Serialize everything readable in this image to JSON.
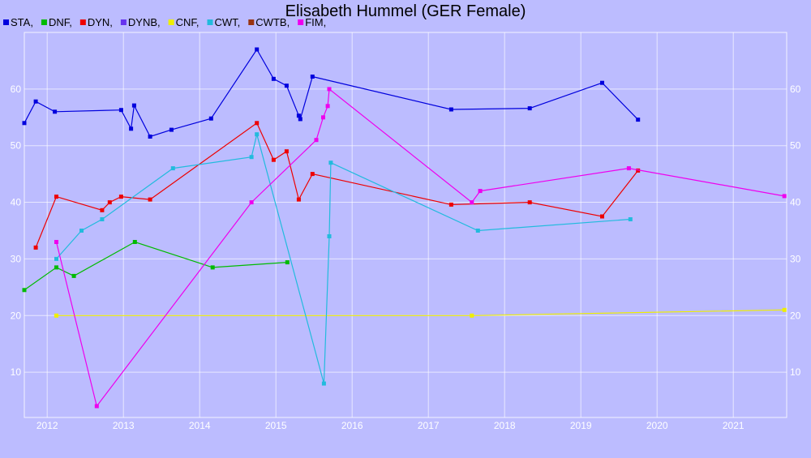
{
  "chart_data": {
    "type": "line",
    "title": "Elisabeth Hummel (GER Female)",
    "xlabel": "",
    "ylabel": "",
    "xlim": [
      2011.7,
      2021.7
    ],
    "ylim": [
      2,
      70
    ],
    "x_ticks": [
      "2012",
      "2013",
      "2014",
      "2015",
      "2016",
      "2017",
      "2018",
      "2019",
      "2020",
      "2021"
    ],
    "y_ticks_left": [
      "10",
      "20",
      "30",
      "40",
      "50",
      "60"
    ],
    "y_ticks_right": [
      "10",
      "20",
      "30",
      "40",
      "50",
      "60"
    ],
    "grid": true,
    "legend_position": "top-left",
    "series": [
      {
        "name": "STA,",
        "color": "#0000dd",
        "points": [
          [
            2011.7,
            54
          ],
          [
            2011.85,
            57.8
          ],
          [
            2012.1,
            56
          ],
          [
            2012.97,
            56.3
          ],
          [
            2013.1,
            53
          ],
          [
            2013.14,
            57.1
          ],
          [
            2013.35,
            51.6
          ],
          [
            2013.63,
            52.8
          ],
          [
            2014.15,
            54.8
          ],
          [
            2014.75,
            67
          ],
          [
            2014.97,
            61.8
          ],
          [
            2015.14,
            60.6
          ],
          [
            2015.3,
            55.3
          ],
          [
            2015.32,
            54.7
          ],
          [
            2015.48,
            62.2
          ],
          [
            2017.3,
            56.4
          ],
          [
            2018.33,
            56.6
          ],
          [
            2019.28,
            61.1
          ],
          [
            2019.75,
            54.6
          ]
        ]
      },
      {
        "name": "DNF,",
        "color": "#00bb00",
        "points": [
          [
            2011.7,
            24.5
          ],
          [
            2012.12,
            28.5
          ],
          [
            2012.35,
            27
          ],
          [
            2013.15,
            33
          ],
          [
            2014.17,
            28.5
          ],
          [
            2015.15,
            29.4
          ]
        ]
      },
      {
        "name": "DYN,",
        "color": "#ee0000",
        "points": [
          [
            2011.85,
            32
          ],
          [
            2012.12,
            41
          ],
          [
            2012.72,
            38.6
          ],
          [
            2012.82,
            40
          ],
          [
            2012.97,
            41
          ],
          [
            2013.35,
            40.5
          ],
          [
            2014.75,
            54
          ],
          [
            2014.97,
            47.5
          ],
          [
            2015.14,
            49
          ],
          [
            2015.3,
            40.5
          ],
          [
            2015.48,
            45
          ],
          [
            2017.3,
            39.6
          ],
          [
            2018.33,
            40
          ],
          [
            2019.28,
            37.5
          ],
          [
            2019.75,
            45.6
          ]
        ]
      },
      {
        "name": "DYNB,",
        "color": "#6633ee",
        "points": []
      },
      {
        "name": "CNF,",
        "color": "#eeee00",
        "points": [
          [
            2012.12,
            20
          ],
          [
            2017.57,
            20
          ],
          [
            2021.67,
            21
          ]
        ]
      },
      {
        "name": "CWT,",
        "color": "#22bbdd",
        "points": [
          [
            2012.12,
            30
          ],
          [
            2012.45,
            35
          ],
          [
            2012.72,
            37
          ],
          [
            2013.65,
            46
          ],
          [
            2014.68,
            48
          ],
          [
            2014.75,
            52
          ],
          [
            2015.63,
            8
          ],
          [
            2015.7,
            34
          ],
          [
            2015.72,
            47
          ],
          [
            2017.65,
            35
          ],
          [
            2019.65,
            37
          ]
        ]
      },
      {
        "name": "CWTB,",
        "color": "#993311",
        "points": []
      },
      {
        "name": "FIM,",
        "color": "#ee00ee",
        "points": [
          [
            2012.12,
            33
          ],
          [
            2012.65,
            4
          ],
          [
            2014.68,
            40
          ],
          [
            2015.53,
            51
          ],
          [
            2015.62,
            55
          ],
          [
            2015.68,
            57
          ],
          [
            2015.7,
            60
          ],
          [
            2017.57,
            40
          ],
          [
            2017.68,
            42
          ],
          [
            2019.63,
            46
          ],
          [
            2021.67,
            41.1
          ]
        ]
      }
    ]
  }
}
